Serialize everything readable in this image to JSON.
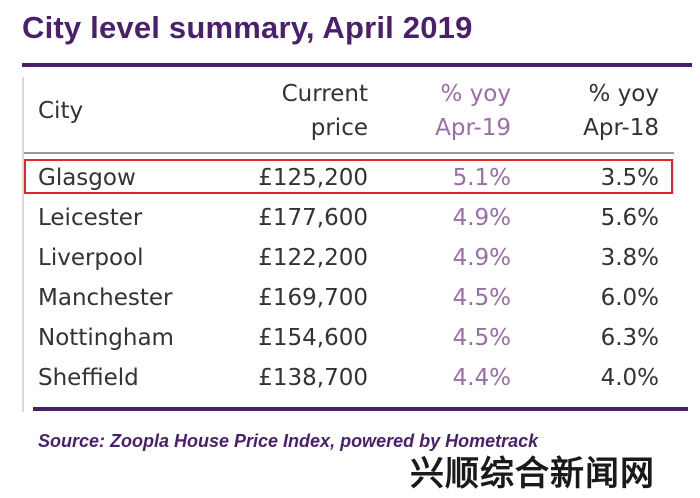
{
  "title": "City level summary, April 2019",
  "table": {
    "headers": {
      "city": "City",
      "current_line1": "Current",
      "current_line2": "price",
      "yoy19_line1": "% yoy",
      "yoy19_line2": "Apr-19",
      "yoy18_line1": "% yoy",
      "yoy18_line2": "Apr-18"
    },
    "rows": [
      {
        "city": "Glasgow",
        "price": "£125,200",
        "yoy19": "5.1%",
        "yoy18": "3.5%"
      },
      {
        "city": "Leicester",
        "price": "£177,600",
        "yoy19": "4.9%",
        "yoy18": "5.6%"
      },
      {
        "city": "Liverpool",
        "price": "£122,200",
        "yoy19": "4.9%",
        "yoy18": "3.8%"
      },
      {
        "city": "Manchester",
        "price": "£169,700",
        "yoy19": "4.5%",
        "yoy18": "6.0%"
      },
      {
        "city": "Nottingham",
        "price": "£154,600",
        "yoy19": "4.5%",
        "yoy18": "6.3%"
      },
      {
        "city": "Sheffield",
        "price": "£138,700",
        "yoy19": "4.4%",
        "yoy18": "4.0%"
      }
    ],
    "highlighted_row": "Glasgow"
  },
  "source": "Source: Zoopla House Price Index, powered by Hometrack",
  "watermark": "兴顺综合新闻网",
  "colors": {
    "title": "#4a1f6b",
    "rule": "#4a1f6b",
    "accent_purple": "#9a6ea8",
    "highlight_border": "#e0252b",
    "text": "#333333"
  }
}
